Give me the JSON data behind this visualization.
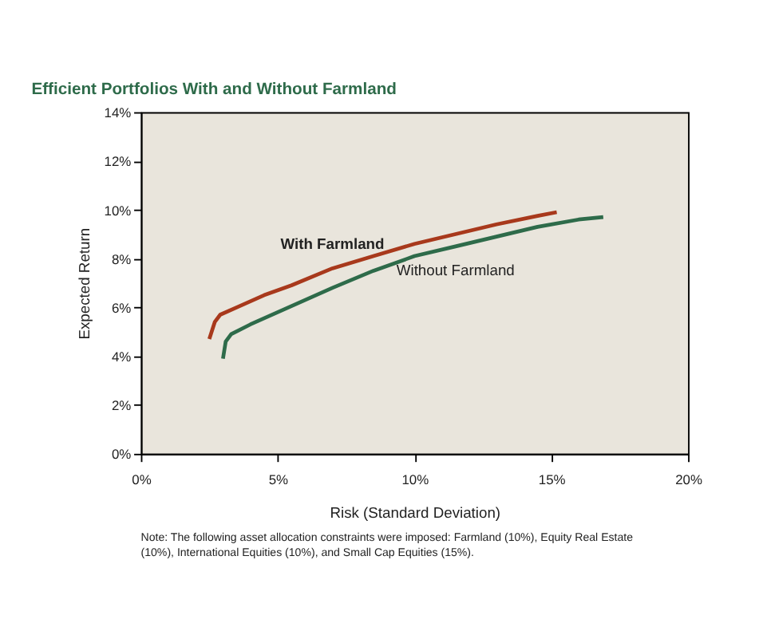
{
  "chart_data": {
    "type": "line",
    "title": "Efficient Portfolios With and Without Farmland",
    "xlabel": "Risk (Standard Deviation)",
    "ylabel": "Expected Return",
    "series": [
      {
        "name": "With Farmland",
        "color": "#a8391c",
        "x": [
          2.5,
          2.7,
          2.9,
          3.5,
          4.5,
          5.5,
          7,
          8.5,
          10,
          11.5,
          13,
          14.5,
          15.2
        ],
        "values": [
          4.7,
          5.4,
          5.7,
          6.0,
          6.5,
          6.9,
          7.6,
          8.1,
          8.6,
          9.0,
          9.4,
          9.75,
          9.9
        ]
      },
      {
        "name": "Without Farmland",
        "color": "#2e6b4a",
        "x": [
          3.0,
          3.1,
          3.3,
          4,
          5,
          6,
          7,
          8.5,
          10,
          11.5,
          13,
          14.5,
          16,
          16.9
        ],
        "values": [
          3.9,
          4.6,
          4.9,
          5.3,
          5.8,
          6.3,
          6.8,
          7.5,
          8.1,
          8.5,
          8.9,
          9.3,
          9.6,
          9.7
        ]
      }
    ],
    "xlim": [
      0,
      20
    ],
    "xticks": [
      {
        "value": 0,
        "label": "0%"
      },
      {
        "value": 5,
        "label": "5%"
      },
      {
        "value": 10,
        "label": "10%"
      },
      {
        "value": 15,
        "label": "15%"
      },
      {
        "value": 20,
        "label": "20%"
      }
    ],
    "ylim": [
      0,
      14
    ],
    "yticks": [
      {
        "value": 0,
        "label": "0%"
      },
      {
        "value": 2,
        "label": "2%"
      },
      {
        "value": 4,
        "label": "4%"
      },
      {
        "value": 6,
        "label": "6%"
      },
      {
        "value": 8,
        "label": "8%"
      },
      {
        "value": 10,
        "label": "10%"
      },
      {
        "value": 12,
        "label": "12%"
      },
      {
        "value": 14,
        "label": "14%"
      }
    ],
    "annotations": [
      "Note: The following asset allocation constraints were imposed: Farmland (10%), Equity Real Estate (10%), International Equities (10%), and Small Cap Equities (15%)."
    ],
    "grid": false,
    "legend": false,
    "marker": "none",
    "line_style": "solid"
  }
}
